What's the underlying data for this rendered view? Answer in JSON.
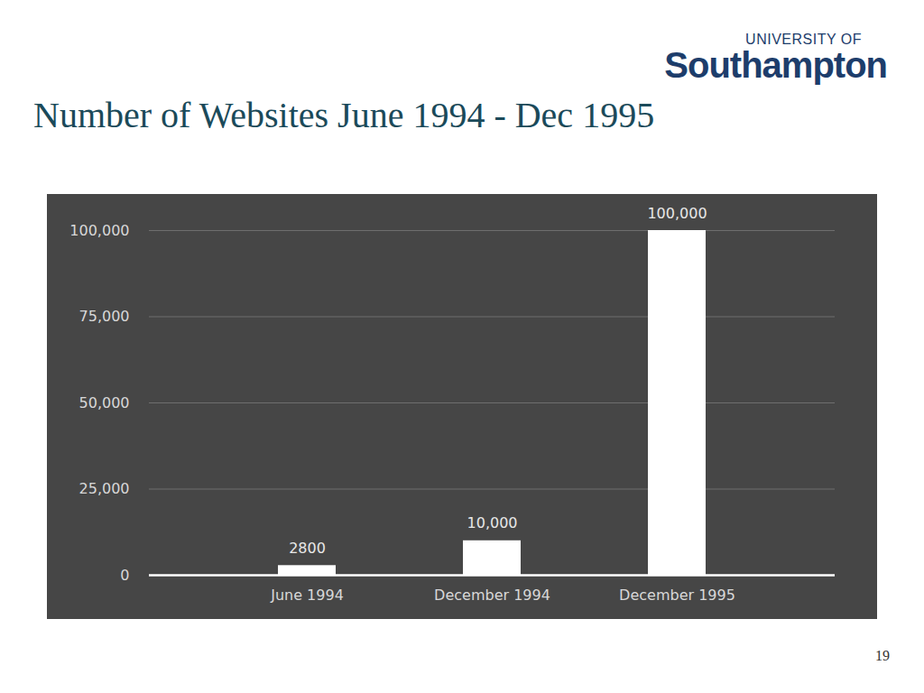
{
  "chart_data": {
    "type": "bar",
    "title": "Number of Websites June 1994 - Dec 1995",
    "categories": [
      "June 1994",
      "December 1994",
      "December 1995"
    ],
    "values": [
      2800,
      10000,
      100000
    ],
    "value_labels": [
      "2800",
      "10,000",
      "100,000"
    ],
    "color": "#ffffff",
    "ylim": [
      0,
      100000
    ],
    "yticks": [
      {
        "value": 0,
        "label": "0"
      },
      {
        "value": 25000,
        "label": "25,000"
      },
      {
        "value": 50000,
        "label": "50,000"
      },
      {
        "value": 75000,
        "label": "75,000"
      },
      {
        "value": 100000,
        "label": "100,000"
      }
    ],
    "grid": true,
    "data_labels": true
  },
  "logo": {
    "line1": "UNIVERSITY OF",
    "line2": "Southampton"
  },
  "page_number": 19
}
